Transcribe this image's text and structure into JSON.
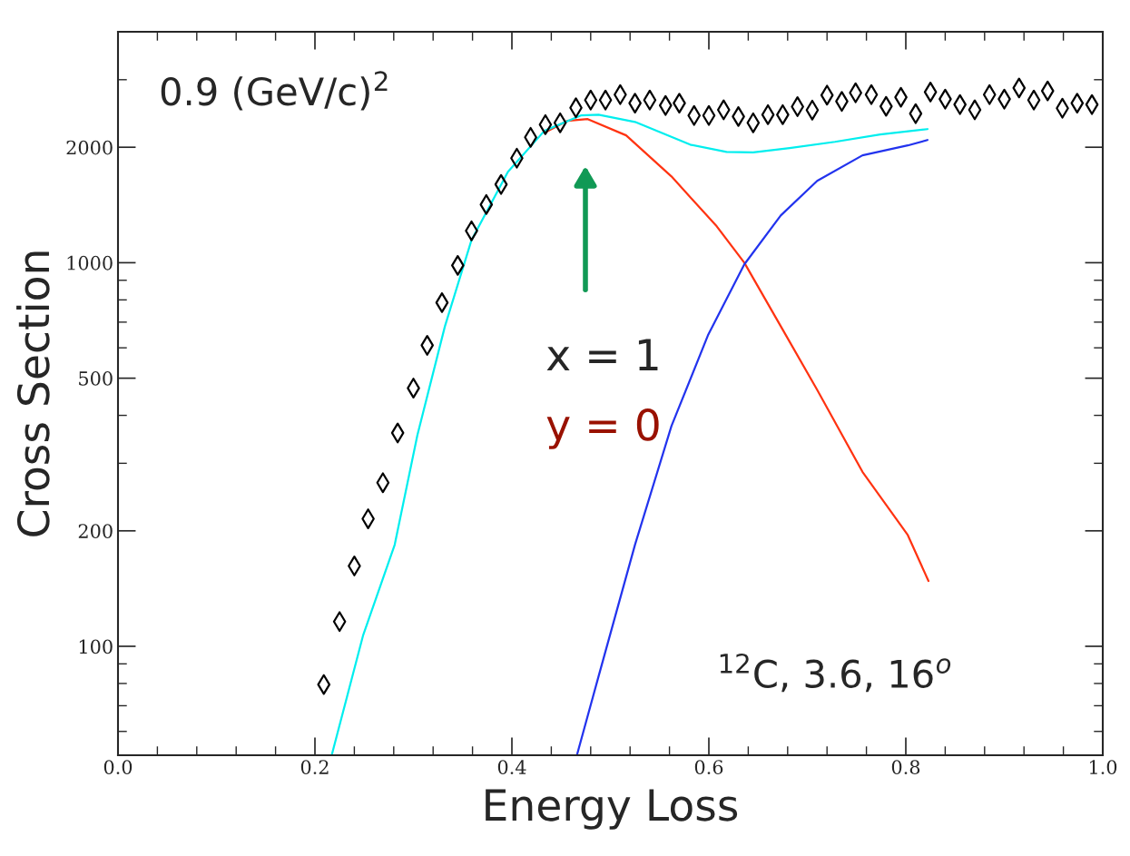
{
  "chart_data": {
    "type": "scatter",
    "xlabel": "Energy Loss",
    "ylabel": "Cross Section",
    "log": "y",
    "xlim": [
      0,
      1
    ],
    "ylim": [
      52,
      4000
    ],
    "xticks": [
      {
        "value": 0,
        "label": "0.0"
      },
      {
        "value": 0.2,
        "label": "0.2"
      },
      {
        "value": 0.4,
        "label": "0.4"
      },
      {
        "value": 0.6,
        "label": "0.6"
      },
      {
        "value": 0.8,
        "label": "0.8"
      },
      {
        "value": 1,
        "label": "1.0"
      }
    ],
    "yticks": [
      100,
      200,
      500,
      1000,
      2000
    ],
    "grid": false,
    "legend": false,
    "series": [
      {
        "color": "#000000",
        "marker": "diamond",
        "x": [
          0.209,
          0.225,
          0.24,
          0.254,
          0.269,
          0.284,
          0.3,
          0.314,
          0.329,
          0.345,
          0.359,
          0.374,
          0.389,
          0.405,
          0.419,
          0.434,
          0.449,
          0.465,
          0.48,
          0.495,
          0.51,
          0.525,
          0.54,
          0.556,
          0.57,
          0.585,
          0.6,
          0.615,
          0.63,
          0.645,
          0.66,
          0.675,
          0.69,
          0.705,
          0.72,
          0.735,
          0.749,
          0.765,
          0.78,
          0.795,
          0.81,
          0.825,
          0.84,
          0.855,
          0.87,
          0.885,
          0.9,
          0.915,
          0.93,
          0.944,
          0.959,
          0.974,
          0.989
        ],
        "values": [
          79.5,
          116,
          162,
          215,
          267,
          360,
          471,
          609,
          787,
          984,
          1211,
          1418,
          1600,
          1873,
          2123,
          2291,
          2316,
          2535,
          2655,
          2655,
          2743,
          2606,
          2655,
          2570,
          2606,
          2420,
          2420,
          2504,
          2405,
          2316,
          2432,
          2432,
          2552,
          2500,
          2734,
          2634,
          2773,
          2743,
          2557,
          2700,
          2447,
          2786,
          2670,
          2584,
          2504,
          2743,
          2670,
          2855,
          2655,
          2805,
          2528,
          2606,
          2584
        ]
      },
      {
        "type": "line",
        "color": "#ff3311",
        "marker": "none",
        "line_style": "solid",
        "x": [
          0.433,
          0.456,
          0.477,
          0.516,
          0.562,
          0.608,
          0.636,
          0.673,
          0.71,
          0.756,
          0.802,
          0.823
        ],
        "values": [
          2183,
          2343,
          2368,
          2148,
          1679,
          1244,
          1000,
          683,
          466,
          285,
          195,
          148
        ]
      },
      {
        "type": "line",
        "color": "#2233ee",
        "marker": "none",
        "line_style": "solid",
        "x": [
          0.466,
          0.488,
          0.525,
          0.562,
          0.599,
          0.636,
          0.673,
          0.71,
          0.756,
          0.802,
          0.822
        ],
        "values": [
          52,
          83.5,
          184,
          375,
          646,
          990,
          1328,
          1634,
          1905,
          2022,
          2089
        ]
      },
      {
        "type": "line",
        "color": "#00eeee",
        "marker": "none",
        "line_style": "solid",
        "x": [
          0.217,
          0.249,
          0.281,
          0.304,
          0.332,
          0.359,
          0.396,
          0.433,
          0.47,
          0.488,
          0.525,
          0.581,
          0.618,
          0.645,
          0.682,
          0.728,
          0.774,
          0.822
        ],
        "values": [
          52,
          107,
          184,
          355,
          683,
          1146,
          1726,
          2207,
          2420,
          2432,
          2328,
          2032,
          1945,
          1940,
          1990,
          2066,
          2159,
          2230
        ]
      }
    ],
    "annotations": [
      {
        "text": "0.9 (GeV/c)$^{2}$"
      },
      "x = 1",
      {
        "text": "y = 0"
      },
      {
        "text": "$^{12}$C, 3.6, 16$^{o}$"
      }
    ]
  }
}
